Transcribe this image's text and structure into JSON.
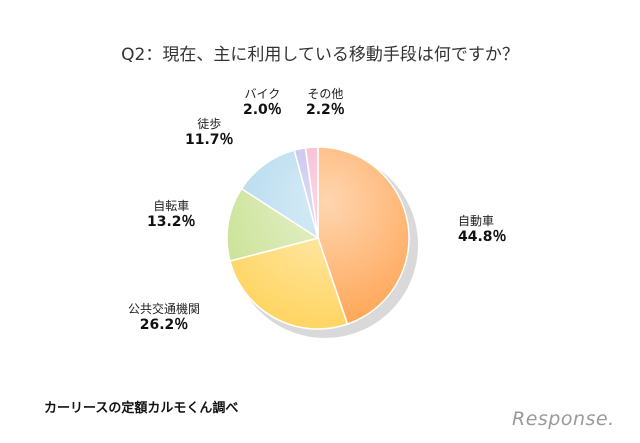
{
  "chart_data": {
    "type": "pie",
    "title": "Q2：現在、主に利用している移動手段は何ですか？",
    "slices": [
      {
        "label": "自動車",
        "value": 44.8,
        "value_label": "44.8％",
        "color": "#ffa24f"
      },
      {
        "label": "公共交通機関",
        "value": 26.2,
        "value_label": "26.2％",
        "color": "#ffd35c"
      },
      {
        "label": "自転車",
        "value": 13.2,
        "value_label": "13.2％",
        "color": "#c7e08e"
      },
      {
        "label": "徒歩",
        "value": 11.7,
        "value_label": "11.7％",
        "color": "#a9d5ec"
      },
      {
        "label": "バイク",
        "value": 2.0,
        "value_label": "2.0％",
        "color": "#b7b0e6"
      },
      {
        "label": "その他",
        "value": 2.2,
        "value_label": "2.2％",
        "color": "#f4a6c4"
      }
    ],
    "legend": "none"
  },
  "footer": {
    "source": "カーリースの定額カルモくん調べ",
    "logo": "Response."
  }
}
